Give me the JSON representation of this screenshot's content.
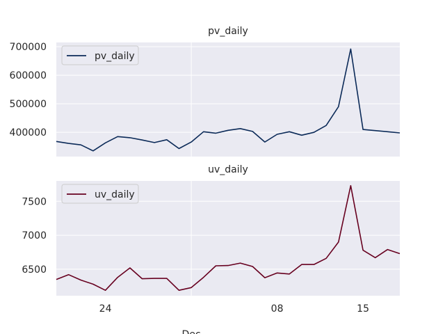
{
  "chart_data": [
    {
      "type": "line",
      "title": "pv_daily",
      "legend": "upper-left",
      "grid": true,
      "color": "#0b2a58",
      "x_start": "2019-11-20",
      "x_end": "2019-12-18",
      "ylim": [
        315000,
        715000
      ],
      "yticks": [
        400000,
        500000,
        600000,
        700000
      ],
      "xtick_labels_shown": false,
      "series": [
        {
          "name": "pv_daily",
          "x": [
            "2019-11-20",
            "2019-11-21",
            "2019-11-22",
            "2019-11-23",
            "2019-11-24",
            "2019-11-25",
            "2019-11-26",
            "2019-11-27",
            "2019-11-28",
            "2019-11-29",
            "2019-11-30",
            "2019-12-01",
            "2019-12-02",
            "2019-12-03",
            "2019-12-04",
            "2019-12-05",
            "2019-12-06",
            "2019-12-07",
            "2019-12-08",
            "2019-12-09",
            "2019-12-10",
            "2019-12-11",
            "2019-12-12",
            "2019-12-13",
            "2019-12-14",
            "2019-12-15",
            "2019-12-16",
            "2019-12-17",
            "2019-12-18"
          ],
          "values": [
            368000,
            361000,
            356000,
            335000,
            363000,
            385000,
            381000,
            373000,
            364000,
            374000,
            343000,
            366000,
            402000,
            397000,
            407000,
            413000,
            403000,
            366000,
            393000,
            402000,
            390000,
            400000,
            424000,
            490000,
            692000,
            410000,
            406000,
            402000,
            398000
          ]
        }
      ]
    },
    {
      "type": "line",
      "title": "uv_daily",
      "legend": "upper-left",
      "grid": true,
      "color": "#67001f",
      "x_start": "2019-11-20",
      "x_end": "2019-12-18",
      "ylim": [
        6110,
        7800
      ],
      "yticks": [
        6500,
        7000,
        7500
      ],
      "xticks": [
        {
          "date": "2019-11-24",
          "label": "24"
        },
        {
          "date": "2019-12-01",
          "label": ""
        },
        {
          "date": "2019-12-08",
          "label": "08"
        },
        {
          "date": "2019-12-15",
          "label": "15"
        }
      ],
      "xlabel": "Dec",
      "series": [
        {
          "name": "uv_daily",
          "x": [
            "2019-11-20",
            "2019-11-21",
            "2019-11-22",
            "2019-11-23",
            "2019-11-24",
            "2019-11-25",
            "2019-11-26",
            "2019-11-27",
            "2019-11-28",
            "2019-11-29",
            "2019-11-30",
            "2019-12-01",
            "2019-12-02",
            "2019-12-03",
            "2019-12-04",
            "2019-12-05",
            "2019-12-06",
            "2019-12-07",
            "2019-12-08",
            "2019-12-09",
            "2019-12-10",
            "2019-12-11",
            "2019-12-12",
            "2019-12-13",
            "2019-12-14",
            "2019-12-15",
            "2019-12-16",
            "2019-12-17",
            "2019-12-18"
          ],
          "values": [
            6350,
            6420,
            6340,
            6280,
            6190,
            6380,
            6520,
            6360,
            6365,
            6365,
            6190,
            6230,
            6380,
            6550,
            6555,
            6590,
            6540,
            6375,
            6445,
            6430,
            6570,
            6570,
            6660,
            6900,
            7730,
            6780,
            6670,
            6790,
            6730
          ]
        }
      ]
    }
  ]
}
